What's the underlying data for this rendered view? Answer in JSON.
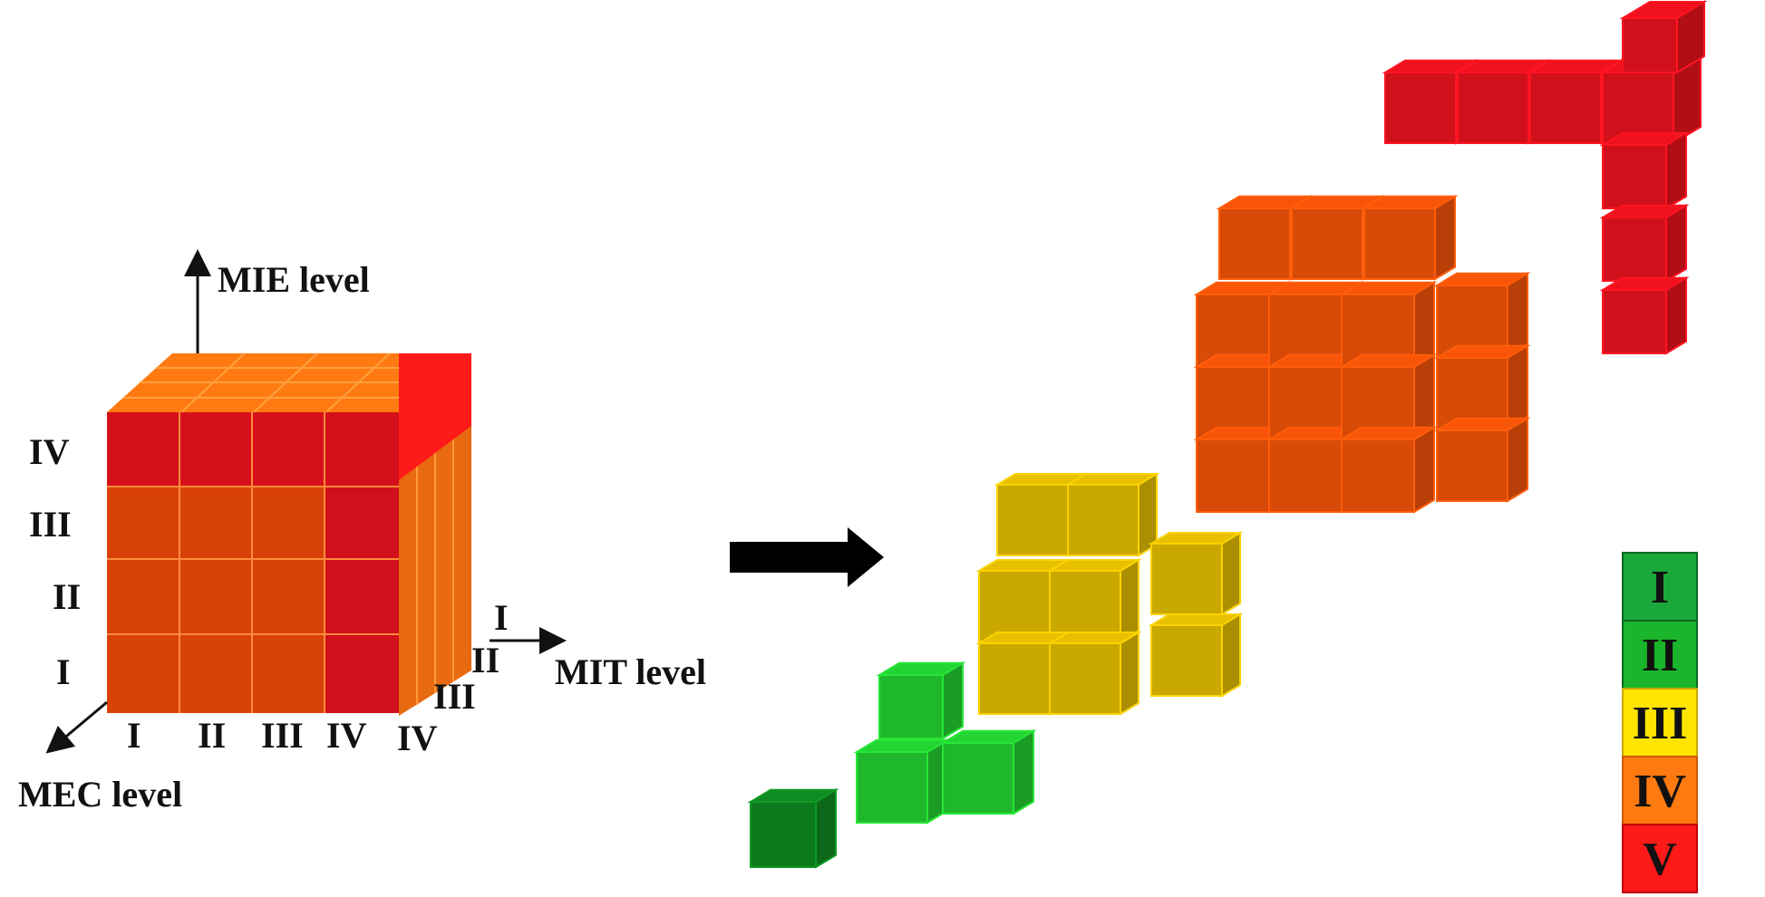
{
  "axes": {
    "mie": "MIE level",
    "mit": "MIT level",
    "mec": "MEC level"
  },
  "ticks": {
    "vertical": [
      "I",
      "II",
      "III",
      "IV"
    ],
    "front": [
      "I",
      "II",
      "III",
      "IV"
    ],
    "depth": [
      "I",
      "II",
      "III",
      "IV"
    ]
  },
  "legend": [
    {
      "label": "I",
      "color": "#1aa83a"
    },
    {
      "label": "II",
      "color": "#1ab52a"
    },
    {
      "label": "III",
      "color": "#ffe400"
    },
    {
      "label": "IV",
      "color": "#ff7a10"
    },
    {
      "label": "V",
      "color": "#ff1a1a"
    }
  ],
  "colors": {
    "level_I": "#0d7a1e",
    "level_II": "#1fb82c",
    "level_III": "#ffd400",
    "level_IV": "#ff6a10",
    "level_V": "#ee1010"
  }
}
